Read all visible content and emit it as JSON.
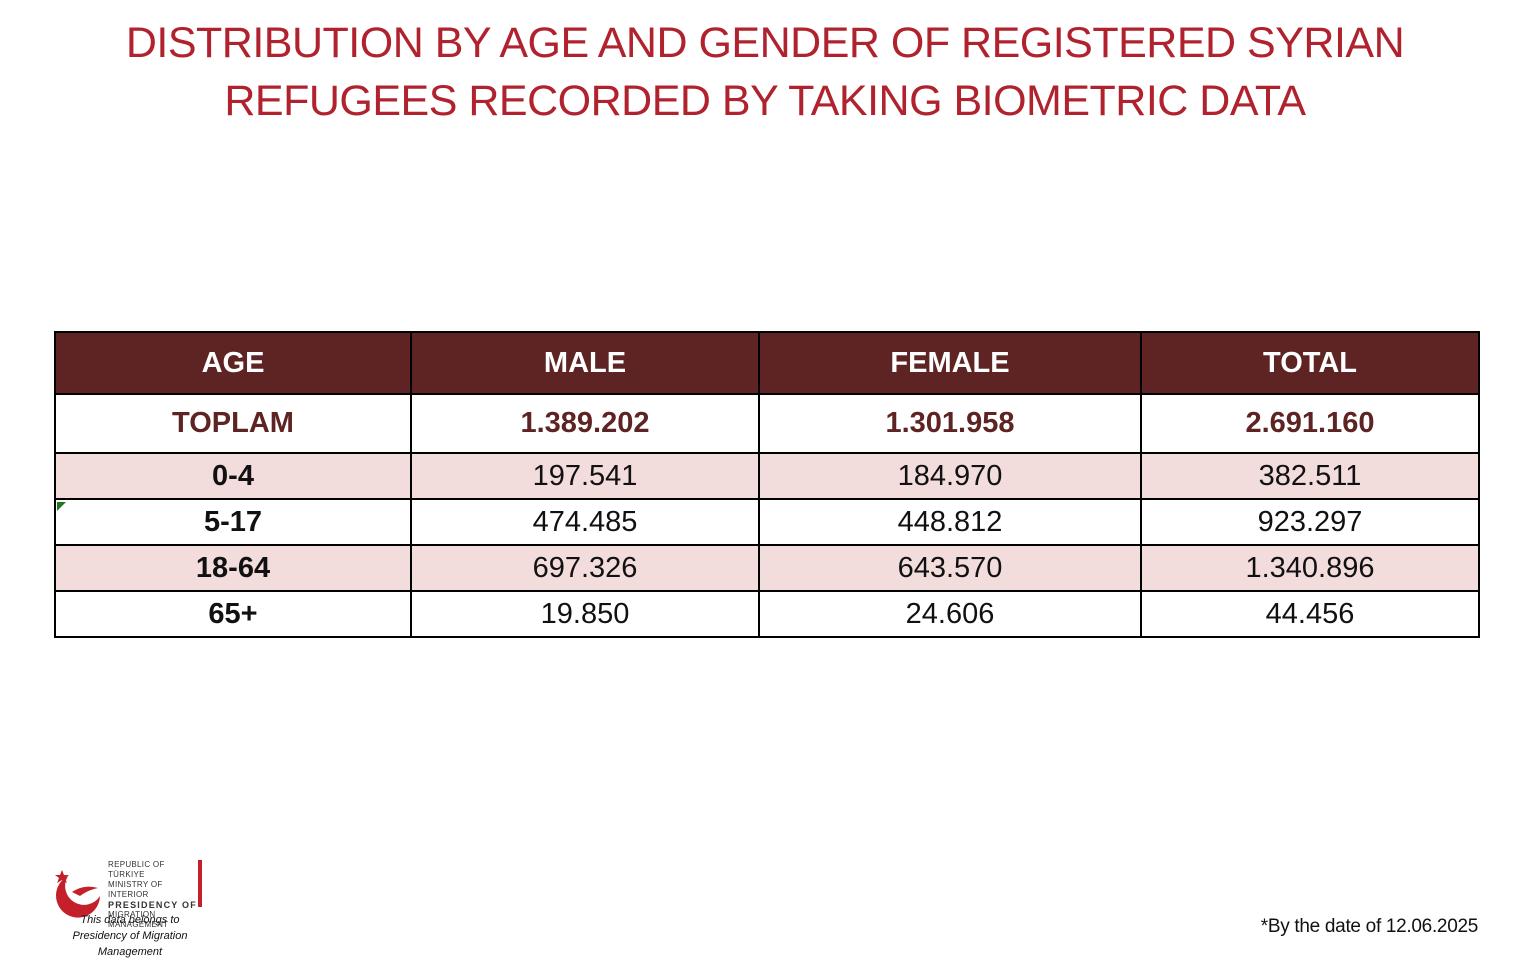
{
  "title_lines": [
    "DISTRIBUTION BY AGE AND GENDER OF REGISTERED SYRIAN",
    "REFUGEES RECORDED BY TAKING BIOMETRIC DATA"
  ],
  "colors": {
    "title": "#b0232e",
    "header_bg": "#5e2323",
    "total_text": "#5e2323",
    "row_shade": "#f2dcdc"
  },
  "chart_data": {
    "type": "table",
    "title": "DISTRIBUTION BY AGE AND GENDER OF REGISTERED SYRIAN REFUGEES RECORDED BY TAKING BIOMETRIC DATA",
    "columns": [
      "AGE",
      "MALE",
      "FEMALE",
      "TOTAL"
    ],
    "total_row": {
      "age": "TOPLAM",
      "male": "1.389.202",
      "female": "1.301.958",
      "total": "2.691.160"
    },
    "rows": [
      {
        "age": "0-4",
        "male": "197.541",
        "female": "184.970",
        "total": "382.511"
      },
      {
        "age": "5-17",
        "male": "474.485",
        "female": "448.812",
        "total": "923.297"
      },
      {
        "age": "18-64",
        "male": "697.326",
        "female": "643.570",
        "total": "1.340.896"
      },
      {
        "age": "65+",
        "male": "19.850",
        "female": "24.606",
        "total": "44.456"
      }
    ]
  },
  "logo": {
    "line1": "REPUBLIC OF TÜRKIYE",
    "line2": "MINISTRY OF INTERIOR",
    "line3": "PRESIDENCY OF",
    "line4": "MIGRATION MANAGEMENT"
  },
  "credit": {
    "line1": "This data belongs to",
    "line2": "Presidency of Migration Management"
  },
  "footnote": "*By the date of 12.06.2025"
}
